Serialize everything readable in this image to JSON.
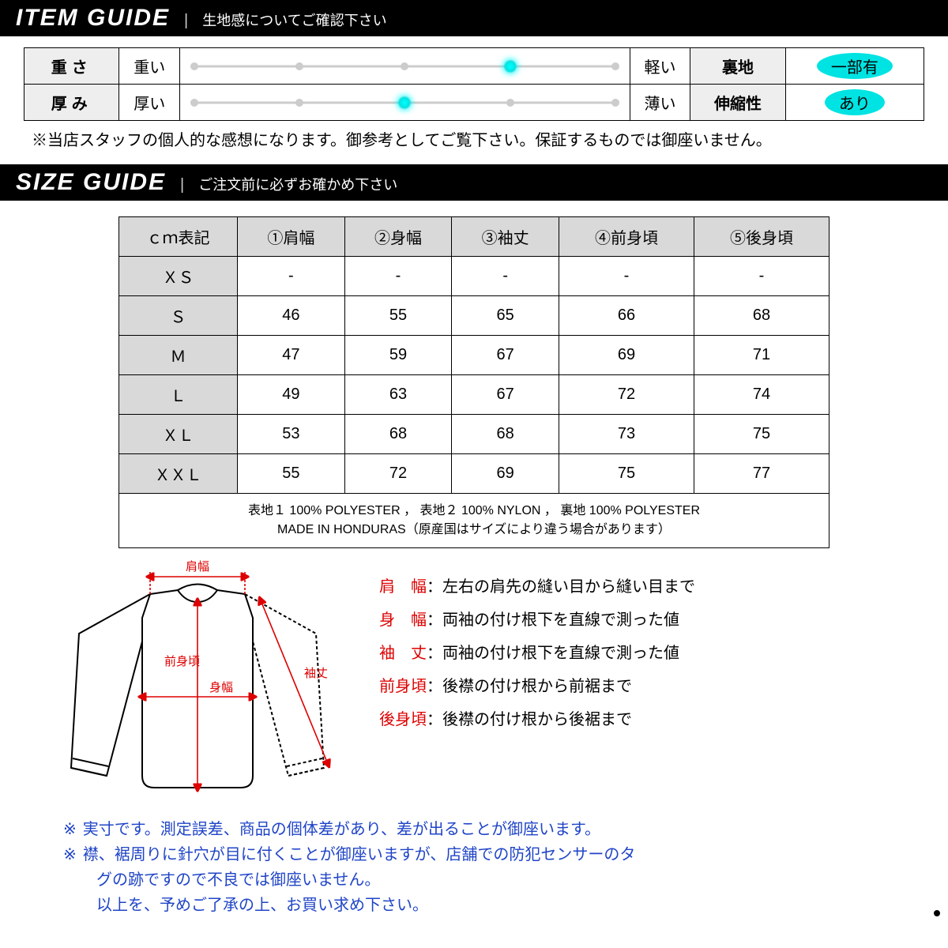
{
  "item_guide": {
    "title": "ITEM GUIDE",
    "subtitle": "生地感についてご確認下さい",
    "slider": {
      "ticks": [
        0,
        25,
        50,
        75,
        100
      ],
      "dot_color": "#cccccc",
      "track_color": "#cccccc",
      "marker_color": "#00e3e3"
    },
    "rows": [
      {
        "label": "重さ",
        "left": "重い",
        "right": "軽い",
        "value_pct": 75,
        "attr": "裏地",
        "attr_val": "一部有"
      },
      {
        "label": "厚み",
        "left": "厚い",
        "right": "薄い",
        "value_pct": 50,
        "attr": "伸縮性",
        "attr_val": "あり"
      }
    ],
    "disclaimer": "※当店スタッフの個人的な感想になります。御参考としてご覧下さい。保証するものでは御座いません。"
  },
  "size_guide": {
    "title": "SIZE GUIDE",
    "subtitle": "ご注文前に必ずお確かめ下さい",
    "columns": [
      "ｃｍ表記",
      "①肩幅",
      "②身幅",
      "③袖丈",
      "④前身頃",
      "⑤後身頃"
    ],
    "rows": [
      {
        "size": "ＸＳ",
        "vals": [
          "-",
          "-",
          "-",
          "-",
          "-"
        ]
      },
      {
        "size": "Ｓ",
        "vals": [
          "46",
          "55",
          "65",
          "66",
          "68"
        ]
      },
      {
        "size": "Ｍ",
        "vals": [
          "47",
          "59",
          "67",
          "69",
          "71"
        ]
      },
      {
        "size": "Ｌ",
        "vals": [
          "49",
          "63",
          "67",
          "72",
          "74"
        ]
      },
      {
        "size": "ＸＬ",
        "vals": [
          "53",
          "68",
          "68",
          "73",
          "75"
        ]
      },
      {
        "size": "ＸＸＬ",
        "vals": [
          "55",
          "72",
          "69",
          "75",
          "77"
        ]
      }
    ],
    "material_line1": "表地１ 100% POLYESTER ， 表地２ 100% NYLON ， 裏地 100% POLYESTER",
    "material_line2": "MADE IN HONDURAS（原産国はサイズにより違う場合があります）"
  },
  "diagram_labels": {
    "katahaba": "肩幅",
    "maemigoro": "前身頃",
    "mihaba": "身幅",
    "sodetake": "袖丈"
  },
  "measurements": [
    {
      "term": "肩　幅",
      "desc": "：左右の肩先の縫い目から縫い目まで"
    },
    {
      "term": "身　幅",
      "desc": "：両袖の付け根下を直線で測った値"
    },
    {
      "term": "袖　丈",
      "desc": "：両袖の付け根下を直線で測った値"
    },
    {
      "term": "前身頃",
      "desc": "：後襟の付け根から前裾まで"
    },
    {
      "term": "後身頃",
      "desc": "：後襟の付け根から後裾まで"
    }
  ],
  "footnotes": {
    "mark": "※",
    "lines": [
      "実寸です。測定誤差、商品の個体差があり、差が出ることが御座います。",
      "襟、裾周りに針穴が目に付くことが御座いますが、店舗での防犯センサーのタ"
    ],
    "cont1": "グの跡ですので不良では御座いません。",
    "cont2": "以上を、予めご了承の上、お買い求め下さい。"
  },
  "colors": {
    "accent": "#00e3e3",
    "footnote": "#2045c7",
    "term": "#d00000",
    "grid": "#000000",
    "header_bg": "#d9d9d9"
  }
}
